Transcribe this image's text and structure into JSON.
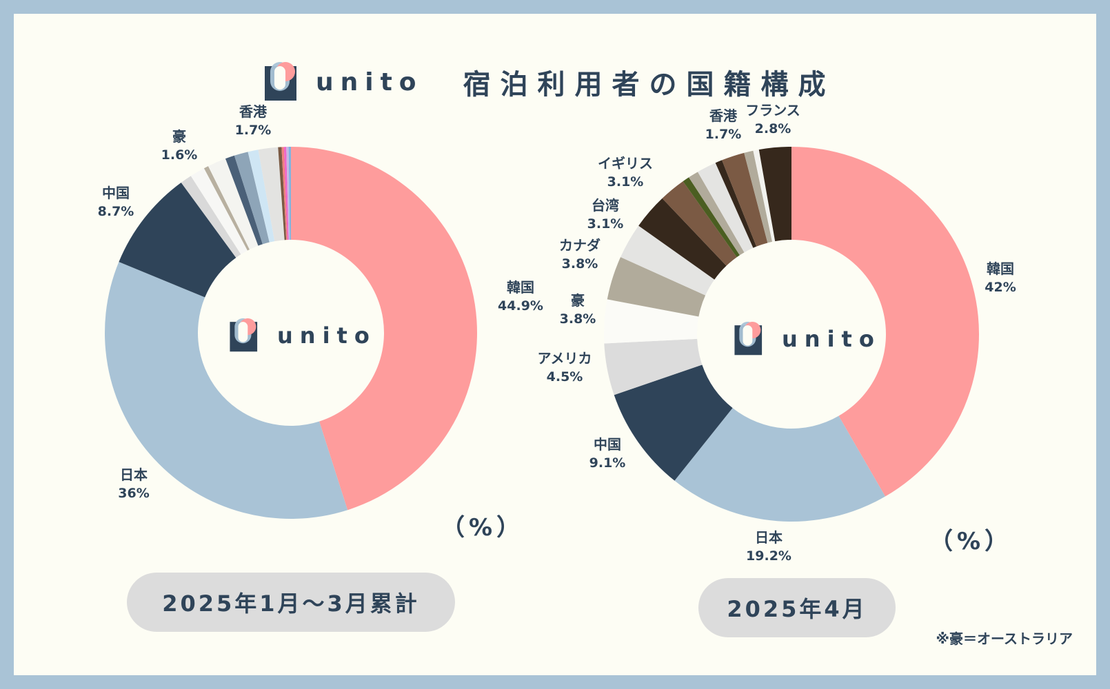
{
  "header": {
    "brand": "unito",
    "title": "宿泊利用者の国籍構成"
  },
  "colors": {
    "frame": "#a9c3d6",
    "card": "#fdfdf4",
    "korea": "#fe9c9c",
    "japan": "#a9c3d6",
    "china": "#2f4459",
    "pill": "#dcdcdc"
  },
  "center_brand": "unito",
  "unit_label": "（%）",
  "footnote": "※豪＝オーストラリア",
  "chart_data": [
    {
      "type": "pie",
      "title": "2025年1月〜3月累計",
      "slices": [
        {
          "label": "韓国",
          "value": 44.9,
          "pct_label": "44.9%",
          "color": "#fe9c9c"
        },
        {
          "label": "日本",
          "value": 36,
          "pct_label": "36%",
          "color": "#a9c3d6"
        },
        {
          "label": "中国",
          "value": 8.7,
          "pct_label": "8.7%",
          "color": "#2f4459"
        },
        {
          "label": "",
          "value": 1.0,
          "pct_label": "",
          "color": "#d9d9d9"
        },
        {
          "label": "",
          "value": 1.3,
          "pct_label": "",
          "color": "#f7f7f5"
        },
        {
          "label": "",
          "value": 0.4,
          "pct_label": "",
          "color": "#b8b0a0"
        },
        {
          "label": "豪",
          "value": 1.6,
          "pct_label": "1.6%",
          "color": "#f4f4f0"
        },
        {
          "label": "",
          "value": 0.8,
          "pct_label": "",
          "color": "#4a6078"
        },
        {
          "label": "",
          "value": 1.2,
          "pct_label": "",
          "color": "#8ea5b8"
        },
        {
          "label": "",
          "value": 0.9,
          "pct_label": "",
          "color": "#cfe6f4"
        },
        {
          "label": "香港",
          "value": 1.7,
          "pct_label": "1.7%",
          "color": "#e3e3e1"
        },
        {
          "label": "",
          "value": 0.3,
          "pct_label": "",
          "color": "#7a5a44"
        },
        {
          "label": "",
          "value": 0.2,
          "pct_label": "",
          "color": "#f07f7f"
        },
        {
          "label": "",
          "value": 0.2,
          "pct_label": "",
          "color": "#f066c8"
        },
        {
          "label": "",
          "value": 0.2,
          "pct_label": "",
          "color": "#c8b5e4"
        },
        {
          "label": "",
          "value": 0.2,
          "pct_label": "",
          "color": "#7fb4e0"
        }
      ]
    },
    {
      "type": "pie",
      "title": "2025年4月",
      "slices": [
        {
          "label": "韓国",
          "value": 42,
          "pct_label": "42%",
          "color": "#fe9c9c"
        },
        {
          "label": "日本",
          "value": 19.2,
          "pct_label": "19.2%",
          "color": "#a9c3d6"
        },
        {
          "label": "中国",
          "value": 9.1,
          "pct_label": "9.1%",
          "color": "#2f4459"
        },
        {
          "label": "アメリカ",
          "value": 4.5,
          "pct_label": "4.5%",
          "color": "#dcdcdc"
        },
        {
          "label": "豪",
          "value": 3.8,
          "pct_label": "3.8%",
          "color": "#fbfbf7"
        },
        {
          "label": "カナダ",
          "value": 3.8,
          "pct_label": "3.8%",
          "color": "#b1ab9b"
        },
        {
          "label": "台湾",
          "value": 3.1,
          "pct_label": "3.1%",
          "color": "#e4e4e2"
        },
        {
          "label": "イギリス",
          "value": 3.1,
          "pct_label": "3.1%",
          "color": "#36281c"
        },
        {
          "label": "",
          "value": 2.3,
          "pct_label": "",
          "color": "#7b5a44"
        },
        {
          "label": "",
          "value": 0.6,
          "pct_label": "",
          "color": "#4b5e21"
        },
        {
          "label": "",
          "value": 0.9,
          "pct_label": "",
          "color": "#b1ab9b"
        },
        {
          "label": "香港",
          "value": 1.7,
          "pct_label": "1.7%",
          "color": "#e4e4e2"
        },
        {
          "label": "",
          "value": 0.6,
          "pct_label": "",
          "color": "#36281c"
        },
        {
          "label": "",
          "value": 2.0,
          "pct_label": "",
          "color": "#7b5a44"
        },
        {
          "label": "",
          "value": 0.8,
          "pct_label": "",
          "color": "#b1ab9b"
        },
        {
          "label": "",
          "value": 0.5,
          "pct_label": "",
          "color": "#f2f2ee"
        },
        {
          "label": "フランス",
          "value": 2.8,
          "pct_label": "2.8%",
          "color": "#36281c"
        }
      ]
    }
  ]
}
